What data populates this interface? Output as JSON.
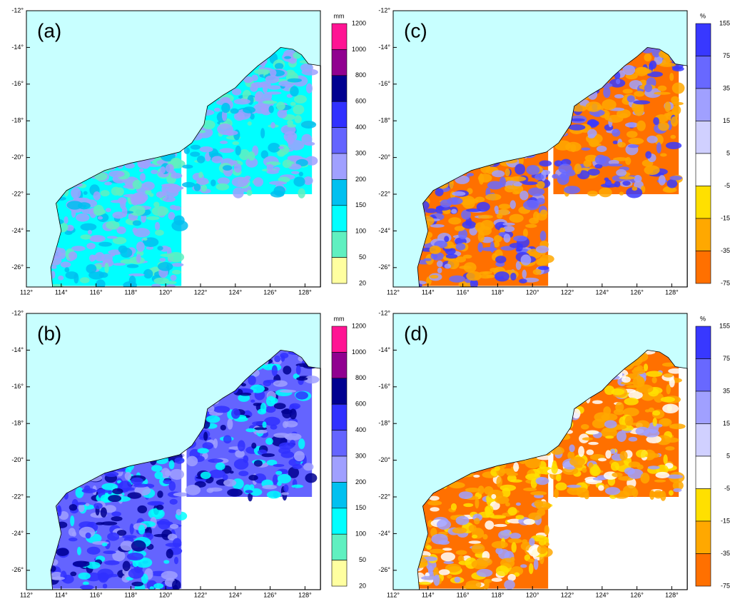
{
  "axes": {
    "lon_ticks": [
      "112°",
      "114°",
      "116°",
      "118°",
      "120°",
      "122°",
      "124°",
      "126°",
      "128°"
    ],
    "lat_ticks": [
      "-12°",
      "-14°",
      "-16°",
      "-18°",
      "-20°",
      "-22°",
      "-24°",
      "-26°"
    ]
  },
  "panels": [
    {
      "label": "(a)",
      "unit": "mm",
      "colorbar": {
        "labels": [
          "1200",
          "1000",
          "800",
          "600",
          "400",
          "300",
          "200",
          "150",
          "100",
          "50",
          "20"
        ],
        "colors": [
          "#ff1493",
          "#900090",
          "#000090",
          "#3030ff",
          "#6464ff",
          "#a0a0ff",
          "#00c0f0",
          "#00ffff",
          "#60f0c0",
          "#ffffa0"
        ]
      }
    },
    {
      "label": "(b)",
      "unit": "mm",
      "colorbar": {
        "labels": [
          "1200",
          "1000",
          "800",
          "600",
          "400",
          "300",
          "200",
          "150",
          "100",
          "50",
          "20"
        ],
        "colors": [
          "#ff1493",
          "#900090",
          "#000090",
          "#3030ff",
          "#6464ff",
          "#a0a0ff",
          "#00c0f0",
          "#00ffff",
          "#60f0c0",
          "#ffffa0"
        ]
      }
    },
    {
      "label": "(c)",
      "unit": "%",
      "colorbar": {
        "labels": [
          "155",
          "75",
          "35",
          "15",
          "5",
          "-5",
          "-15",
          "-35",
          "-75"
        ],
        "colors": [
          "#3838ff",
          "#6868ff",
          "#a0a0ff",
          "#d0d0ff",
          "#ffffff",
          "#ffe000",
          "#ffa800",
          "#ff7000"
        ]
      }
    },
    {
      "label": "(d)",
      "unit": "%",
      "colorbar": {
        "labels": [
          "155",
          "75",
          "35",
          "15",
          "5",
          "-5",
          "-15",
          "-35",
          "-75"
        ],
        "colors": [
          "#3838ff",
          "#6868ff",
          "#a0a0ff",
          "#d0d0ff",
          "#ffffff",
          "#ffe000",
          "#ffa800",
          "#ff7000"
        ]
      }
    }
  ]
}
